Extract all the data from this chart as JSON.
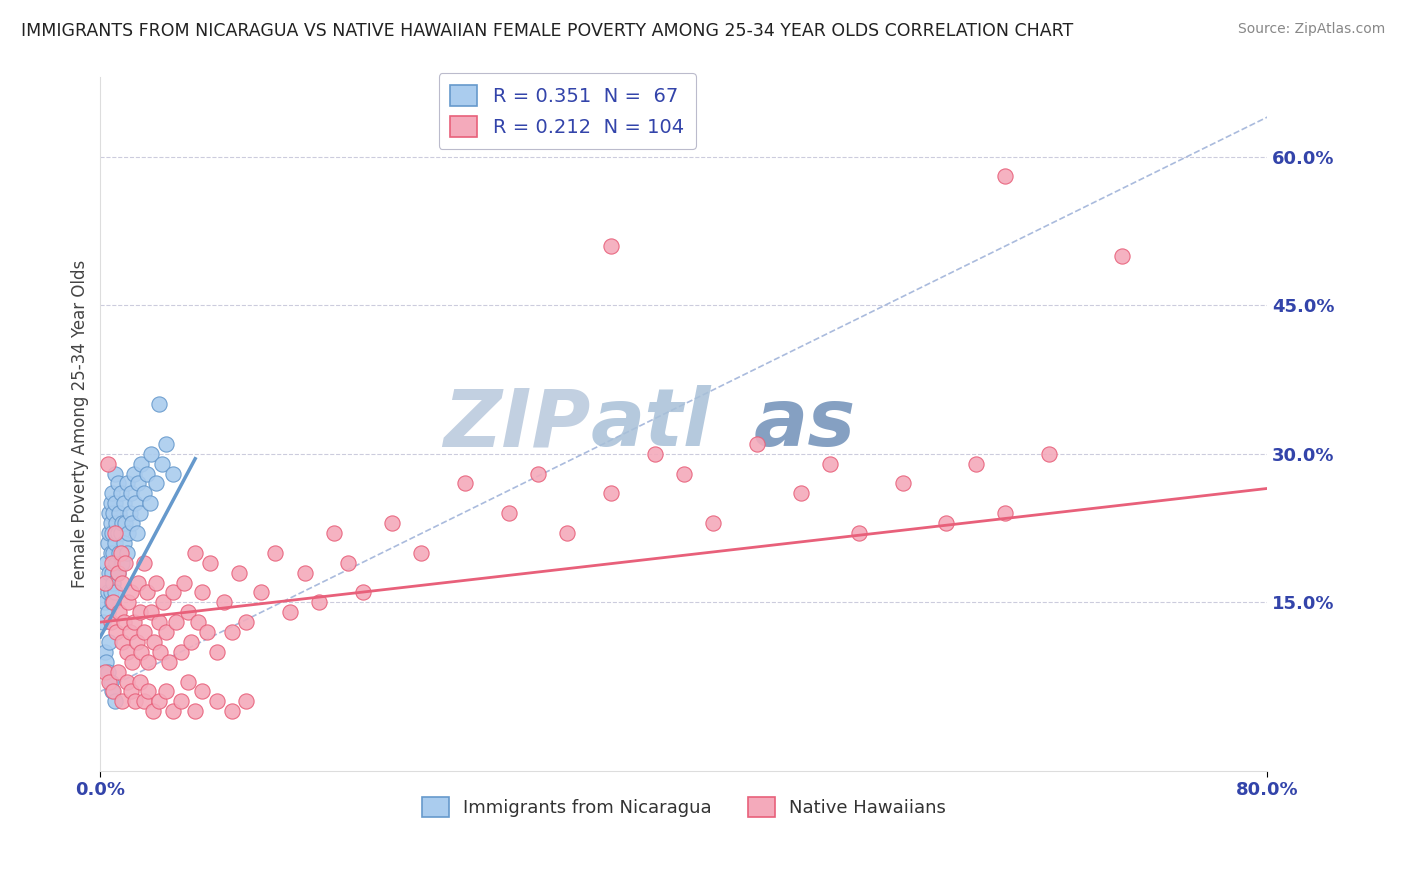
{
  "title": "IMMIGRANTS FROM NICARAGUA VS NATIVE HAWAIIAN FEMALE POVERTY AMONG 25-34 YEAR OLDS CORRELATION CHART",
  "source": "Source: ZipAtlas.com",
  "ylabel": "Female Poverty Among 25-34 Year Olds",
  "xlim": [
    0.0,
    0.8
  ],
  "ylim": [
    -0.02,
    0.68
  ],
  "yticks": [
    0.0,
    0.15,
    0.3,
    0.45,
    0.6
  ],
  "ytick_labels": [
    "",
    "15.0%",
    "30.0%",
    "45.0%",
    "60.0%"
  ],
  "blue_R": 0.351,
  "pink_R": 0.212,
  "blue_N": 67,
  "pink_N": 104,
  "blue_color": "#6699cc",
  "blue_color_fill": "#aaccee",
  "pink_color": "#e8607a",
  "pink_color_fill": "#f4aabb",
  "grid_color": "#ccccdd",
  "bg_color": "#ffffff",
  "title_color": "#222222",
  "axis_label_color": "#444444",
  "tick_color": "#3344aa",
  "blue_scatter": [
    [
      0.002,
      0.13
    ],
    [
      0.003,
      0.15
    ],
    [
      0.004,
      0.17
    ],
    [
      0.004,
      0.19
    ],
    [
      0.005,
      0.14
    ],
    [
      0.005,
      0.16
    ],
    [
      0.005,
      0.21
    ],
    [
      0.006,
      0.18
    ],
    [
      0.006,
      0.22
    ],
    [
      0.006,
      0.24
    ],
    [
      0.007,
      0.16
    ],
    [
      0.007,
      0.2
    ],
    [
      0.007,
      0.23
    ],
    [
      0.007,
      0.25
    ],
    [
      0.008,
      0.15
    ],
    [
      0.008,
      0.18
    ],
    [
      0.008,
      0.22
    ],
    [
      0.008,
      0.26
    ],
    [
      0.009,
      0.17
    ],
    [
      0.009,
      0.2
    ],
    [
      0.009,
      0.24
    ],
    [
      0.01,
      0.16
    ],
    [
      0.01,
      0.21
    ],
    [
      0.01,
      0.25
    ],
    [
      0.01,
      0.28
    ],
    [
      0.011,
      0.19
    ],
    [
      0.011,
      0.23
    ],
    [
      0.012,
      0.18
    ],
    [
      0.012,
      0.22
    ],
    [
      0.012,
      0.27
    ],
    [
      0.013,
      0.2
    ],
    [
      0.013,
      0.24
    ],
    [
      0.014,
      0.22
    ],
    [
      0.014,
      0.26
    ],
    [
      0.015,
      0.19
    ],
    [
      0.015,
      0.23
    ],
    [
      0.016,
      0.21
    ],
    [
      0.016,
      0.25
    ],
    [
      0.017,
      0.23
    ],
    [
      0.018,
      0.2
    ],
    [
      0.018,
      0.27
    ],
    [
      0.019,
      0.22
    ],
    [
      0.02,
      0.24
    ],
    [
      0.021,
      0.26
    ],
    [
      0.022,
      0.23
    ],
    [
      0.023,
      0.28
    ],
    [
      0.024,
      0.25
    ],
    [
      0.025,
      0.22
    ],
    [
      0.026,
      0.27
    ],
    [
      0.027,
      0.24
    ],
    [
      0.028,
      0.29
    ],
    [
      0.03,
      0.26
    ],
    [
      0.032,
      0.28
    ],
    [
      0.034,
      0.25
    ],
    [
      0.035,
      0.3
    ],
    [
      0.038,
      0.27
    ],
    [
      0.04,
      0.35
    ],
    [
      0.042,
      0.29
    ],
    [
      0.045,
      0.31
    ],
    [
      0.05,
      0.28
    ],
    [
      0.003,
      0.1
    ],
    [
      0.004,
      0.09
    ],
    [
      0.005,
      0.08
    ],
    [
      0.006,
      0.11
    ],
    [
      0.007,
      0.07
    ],
    [
      0.008,
      0.06
    ],
    [
      0.01,
      0.05
    ]
  ],
  "pink_scatter": [
    [
      0.003,
      0.17
    ],
    [
      0.005,
      0.29
    ],
    [
      0.007,
      0.13
    ],
    [
      0.008,
      0.19
    ],
    [
      0.009,
      0.15
    ],
    [
      0.01,
      0.22
    ],
    [
      0.011,
      0.12
    ],
    [
      0.012,
      0.18
    ],
    [
      0.013,
      0.14
    ],
    [
      0.014,
      0.2
    ],
    [
      0.015,
      0.11
    ],
    [
      0.015,
      0.17
    ],
    [
      0.016,
      0.13
    ],
    [
      0.017,
      0.19
    ],
    [
      0.018,
      0.1
    ],
    [
      0.019,
      0.15
    ],
    [
      0.02,
      0.12
    ],
    [
      0.021,
      0.16
    ],
    [
      0.022,
      0.09
    ],
    [
      0.023,
      0.13
    ],
    [
      0.025,
      0.11
    ],
    [
      0.026,
      0.17
    ],
    [
      0.027,
      0.14
    ],
    [
      0.028,
      0.1
    ],
    [
      0.03,
      0.19
    ],
    [
      0.03,
      0.12
    ],
    [
      0.032,
      0.16
    ],
    [
      0.033,
      0.09
    ],
    [
      0.035,
      0.14
    ],
    [
      0.037,
      0.11
    ],
    [
      0.038,
      0.17
    ],
    [
      0.04,
      0.13
    ],
    [
      0.041,
      0.1
    ],
    [
      0.043,
      0.15
    ],
    [
      0.045,
      0.12
    ],
    [
      0.047,
      0.09
    ],
    [
      0.05,
      0.16
    ],
    [
      0.052,
      0.13
    ],
    [
      0.055,
      0.1
    ],
    [
      0.057,
      0.17
    ],
    [
      0.06,
      0.14
    ],
    [
      0.062,
      0.11
    ],
    [
      0.065,
      0.2
    ],
    [
      0.067,
      0.13
    ],
    [
      0.07,
      0.16
    ],
    [
      0.073,
      0.12
    ],
    [
      0.075,
      0.19
    ],
    [
      0.08,
      0.1
    ],
    [
      0.085,
      0.15
    ],
    [
      0.09,
      0.12
    ],
    [
      0.095,
      0.18
    ],
    [
      0.1,
      0.13
    ],
    [
      0.11,
      0.16
    ],
    [
      0.12,
      0.2
    ],
    [
      0.13,
      0.14
    ],
    [
      0.14,
      0.18
    ],
    [
      0.15,
      0.15
    ],
    [
      0.16,
      0.22
    ],
    [
      0.17,
      0.19
    ],
    [
      0.18,
      0.16
    ],
    [
      0.2,
      0.23
    ],
    [
      0.22,
      0.2
    ],
    [
      0.25,
      0.27
    ],
    [
      0.28,
      0.24
    ],
    [
      0.3,
      0.28
    ],
    [
      0.32,
      0.22
    ],
    [
      0.35,
      0.26
    ],
    [
      0.38,
      0.3
    ],
    [
      0.4,
      0.28
    ],
    [
      0.42,
      0.23
    ],
    [
      0.45,
      0.31
    ],
    [
      0.48,
      0.26
    ],
    [
      0.5,
      0.29
    ],
    [
      0.52,
      0.22
    ],
    [
      0.55,
      0.27
    ],
    [
      0.58,
      0.23
    ],
    [
      0.6,
      0.29
    ],
    [
      0.62,
      0.24
    ],
    [
      0.65,
      0.3
    ],
    [
      0.7,
      0.5
    ],
    [
      0.003,
      0.08
    ],
    [
      0.006,
      0.07
    ],
    [
      0.009,
      0.06
    ],
    [
      0.012,
      0.08
    ],
    [
      0.015,
      0.05
    ],
    [
      0.018,
      0.07
    ],
    [
      0.021,
      0.06
    ],
    [
      0.024,
      0.05
    ],
    [
      0.027,
      0.07
    ],
    [
      0.03,
      0.05
    ],
    [
      0.033,
      0.06
    ],
    [
      0.036,
      0.04
    ],
    [
      0.04,
      0.05
    ],
    [
      0.045,
      0.06
    ],
    [
      0.05,
      0.04
    ],
    [
      0.055,
      0.05
    ],
    [
      0.06,
      0.07
    ],
    [
      0.065,
      0.04
    ],
    [
      0.07,
      0.06
    ],
    [
      0.08,
      0.05
    ],
    [
      0.09,
      0.04
    ],
    [
      0.1,
      0.05
    ],
    [
      0.35,
      0.51
    ],
    [
      0.62,
      0.58
    ]
  ],
  "blue_line_x": [
    0.0,
    0.065
  ],
  "blue_line_y": [
    0.115,
    0.295
  ],
  "dashed_line_x": [
    0.0,
    0.8
  ],
  "dashed_line_y": [
    0.06,
    0.64
  ],
  "pink_line_x": [
    0.0,
    0.8
  ],
  "pink_line_y": [
    0.13,
    0.265
  ]
}
